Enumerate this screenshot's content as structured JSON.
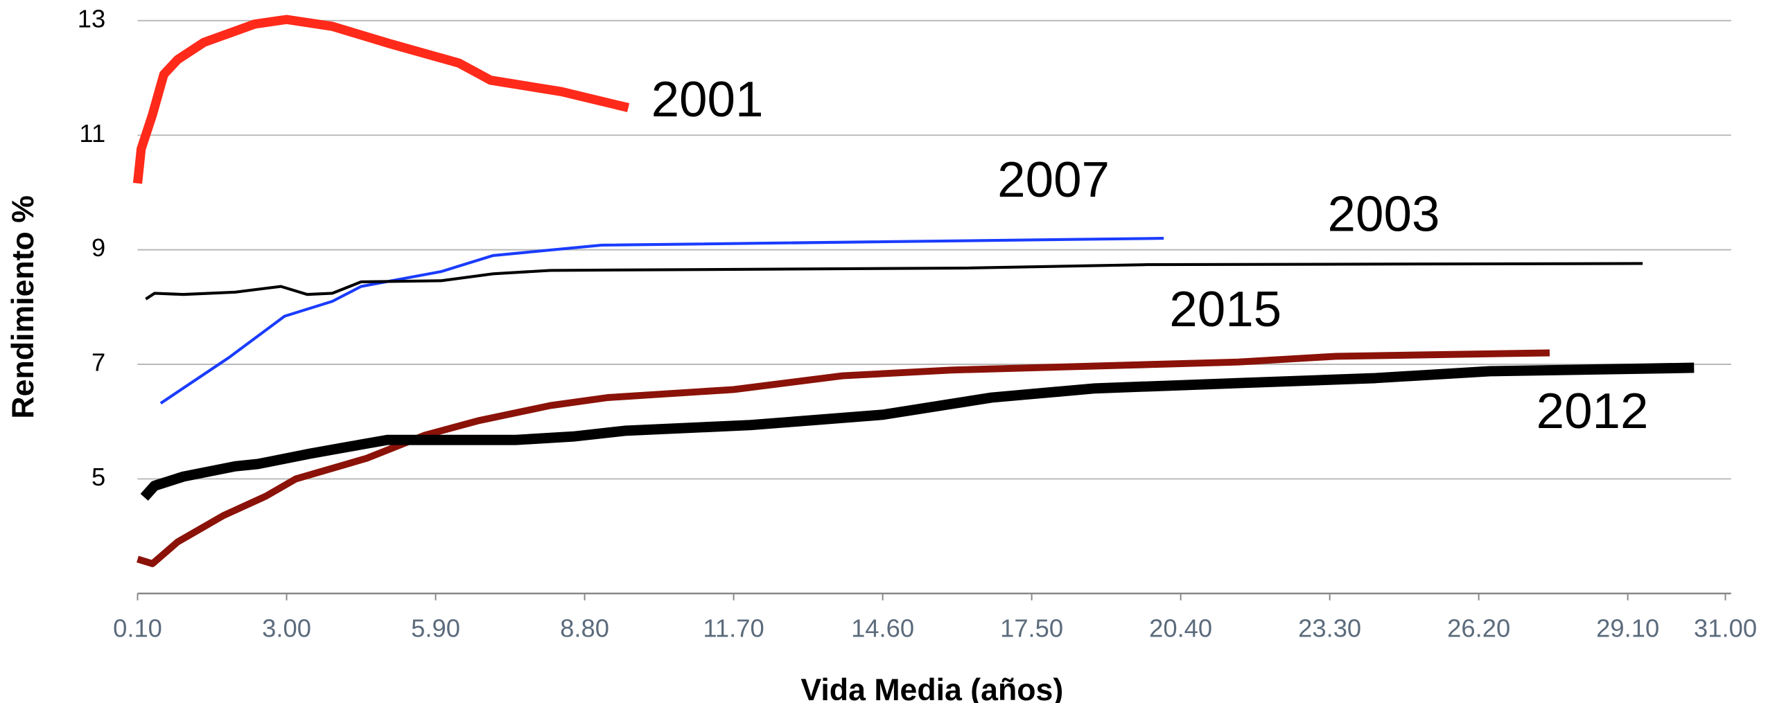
{
  "chart_data": {
    "type": "line",
    "xlabel": "Vida Media (años)",
    "ylabel": "Rendimiento %",
    "xlim": [
      0.1,
      31
    ],
    "xticks": [
      {
        "value": 0.1,
        "label": "0.10"
      },
      {
        "value": 3,
        "label": "3.00"
      },
      {
        "value": 5.9,
        "label": "5.90"
      },
      {
        "value": 8.8,
        "label": "8.80"
      },
      {
        "value": 11.7,
        "label": "11.70"
      },
      {
        "value": 14.6,
        "label": "14.60"
      },
      {
        "value": 17.5,
        "label": "17.50"
      },
      {
        "value": 20.4,
        "label": "20.40"
      },
      {
        "value": 23.3,
        "label": "23.30"
      },
      {
        "value": 26.2,
        "label": "26.20"
      },
      {
        "value": 29.1,
        "label": "29.10"
      },
      {
        "value": 31,
        "label": "31.00"
      }
    ],
    "ylim": [
      3,
      13
    ],
    "yticks": [
      5,
      7,
      9,
      11,
      13
    ],
    "grid": true,
    "series": [
      {
        "name": "2001",
        "color": "#ff2a1a",
        "width": 8,
        "x": [
          0.1,
          0.17,
          0.39,
          0.61,
          0.88,
          1.39,
          2.38,
          3.0,
          3.89,
          5.0,
          6.35,
          6.97,
          8.35,
          9.65
        ],
        "values": [
          10.16,
          10.76,
          11.36,
          12.06,
          12.32,
          12.62,
          12.94,
          13.02,
          12.9,
          12.6,
          12.26,
          11.96,
          11.76,
          11.48
        ]
      },
      {
        "name": "2007",
        "color": "#1a3cff",
        "width": 2.5,
        "x": [
          0.55,
          1.88,
          2.96,
          3.89,
          4.45,
          6.01,
          7.02,
          9.13,
          20.07
        ],
        "values": [
          6.32,
          7.12,
          7.84,
          8.1,
          8.36,
          8.62,
          8.9,
          9.08,
          9.2
        ]
      },
      {
        "name": "2003",
        "color": "#000000",
        "width": 2.5,
        "x": [
          0.26,
          0.43,
          0.99,
          2.0,
          2.89,
          3.4,
          3.89,
          4.45,
          6.01,
          7.02,
          8.13,
          16.16,
          19.73,
          29.39
        ],
        "values": [
          8.14,
          8.24,
          8.22,
          8.26,
          8.36,
          8.22,
          8.24,
          8.44,
          8.46,
          8.58,
          8.64,
          8.68,
          8.74,
          8.76
        ]
      },
      {
        "name": "2015",
        "color": "#8b1208",
        "width": 6,
        "x": [
          0.1,
          0.39,
          0.88,
          1.77,
          2.6,
          3.18,
          4.56,
          5.68,
          6.75,
          8.13,
          9.25,
          11.7,
          13.82,
          15.94,
          21.52,
          23.42,
          27.58
        ],
        "values": [
          3.6,
          3.52,
          3.9,
          4.36,
          4.7,
          5.0,
          5.36,
          5.76,
          6.02,
          6.28,
          6.42,
          6.56,
          6.8,
          6.9,
          7.04,
          7.14,
          7.2
        ]
      },
      {
        "name": "2012",
        "color": "#000000",
        "width": 9,
        "x": [
          0.23,
          0.43,
          0.99,
          2.0,
          2.44,
          3.45,
          4.45,
          4.96,
          7.46,
          8.58,
          9.58,
          12.03,
          14.6,
          16.72,
          18.73,
          24.19,
          26.42,
          30.39
        ],
        "values": [
          4.68,
          4.88,
          5.04,
          5.22,
          5.26,
          5.44,
          5.6,
          5.68,
          5.68,
          5.74,
          5.84,
          5.94,
          6.12,
          6.42,
          6.58,
          6.76,
          6.88,
          6.94
        ]
      }
    ]
  }
}
